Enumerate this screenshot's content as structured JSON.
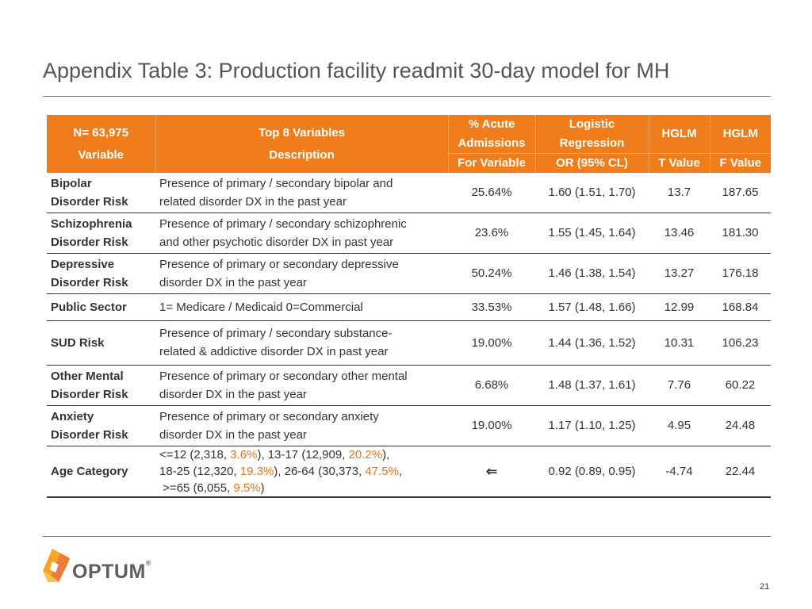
{
  "title": "Appendix Table 3: Production facility readmit 30-day model for MH",
  "header": {
    "col1_line1": "N= 63,975",
    "col1_line2": "Variable",
    "col2_line1": "Top 8 Variables",
    "col2_line2": "Description",
    "col3_line1": "% Acute",
    "col3_line2": "Admissions",
    "col3_sub": "For Variable",
    "col4_line1": "Logistic",
    "col4_line2": "Regression",
    "col4_sub": "OR  (95% CL)",
    "col5": "HGLM",
    "col5_sub": "T Value",
    "col6": "HGLM",
    "col6_sub": "F Value"
  },
  "rows": [
    {
      "var1": "Bipolar",
      "var2": "Disorder Risk",
      "desc1": "Presence of primary / secondary bipolar and",
      "desc2": "related disorder DX in the past year",
      "pct": "25.64%",
      "or": "1.60 (1.51, 1.70)",
      "t": "13.7",
      "f": "187.65"
    },
    {
      "var1": "Schizophrenia",
      "var2": "Disorder Risk",
      "desc1": "Presence of primary / secondary schizophrenic",
      "desc2": "and other psychotic disorder DX in  past year",
      "pct": "23.6%",
      "or": "1.55 (1.45, 1.64)",
      "t": "13.46",
      "f": "181.30"
    },
    {
      "var1": "Depressive",
      "var2": "Disorder Risk",
      "desc1": "Presence of primary or secondary depressive",
      "desc2": "disorder DX in the past year",
      "pct": "50.24%",
      "or": "1.46 (1.38, 1.54)",
      "t": "13.27",
      "f": "176.18"
    },
    {
      "var1": "Public Sector",
      "desc1": "1= Medicare / Medicaid  0=Commercial",
      "pct": "33.53%",
      "or": "1.57 (1.48, 1.66)",
      "t": "12.99",
      "f": "168.84"
    },
    {
      "var1": "SUD Risk",
      "desc1": "Presence of primary / secondary substance-",
      "desc2": "related & addictive disorder DX in  past year",
      "pct": "19.00%",
      "or": "1.44 (1.36, 1.52)",
      "t": "10.31",
      "f": "106.23"
    },
    {
      "var1": "Other Mental",
      "var2": "Disorder Risk",
      "desc1": "Presence of primary or secondary other mental",
      "desc2": "disorder DX in the past year",
      "pct": "6.68%",
      "or": "1.48 (1.37, 1.61)",
      "t": "7.76",
      "f": "60.22"
    },
    {
      "var1": "Anxiety",
      "var2": "Disorder Risk",
      "desc1": "Presence of primary or secondary anxiety",
      "desc2": "disorder DX in the past year",
      "pct": "19.00%",
      "or": "1.17 (1.10, 1.25)",
      "t": "4.95",
      "f": "24.48"
    }
  ],
  "age_row": {
    "var": "Age  Category",
    "l1a": "<=12 (2,318, ",
    "l1b": "3.6%",
    "l1c": "),  13-17 (12,909,  ",
    "l1d": "20.2%",
    "l1e": "),",
    "l2a": "18-25 (12,320, ",
    "l2b": "19.3%",
    "l2c": "),  26-64 (30,373, ",
    "l2d": "47.5%",
    "l2e": ",",
    "l3a": ">=65 (6,055, ",
    "l3b": "9.5%",
    "l3c": ")",
    "pct_icon": "left-arrow-icon",
    "pct": "⇐",
    "or": "0.92 (0.89, 0.95)",
    "t": "-4.74",
    "f": "22.44"
  },
  "logo": {
    "text": "OPTUM",
    "reg": "®"
  },
  "page_number": "21",
  "colors": {
    "header_bg": "#f07d1a",
    "highlight": "#e3741b",
    "text": "#333333"
  }
}
